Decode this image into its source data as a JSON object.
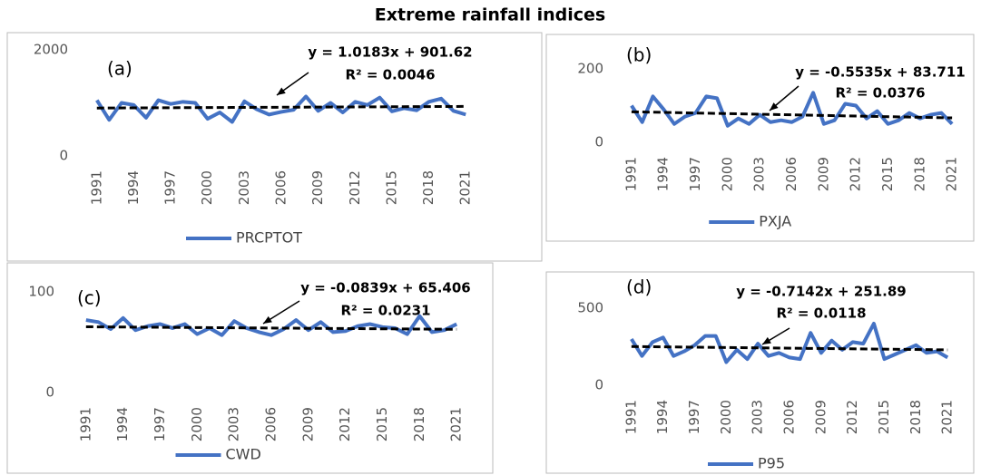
{
  "title": "Extreme rainfall indices",
  "chart_data": [
    {
      "type": "line",
      "panel": "(a)",
      "categories": [
        "1991",
        null,
        null,
        "1994",
        null,
        null,
        "1997",
        null,
        null,
        "2000",
        null,
        null,
        "2003",
        null,
        null,
        "2006",
        null,
        null,
        "2009",
        null,
        null,
        "2012",
        null,
        null,
        "2015",
        null,
        null,
        "2018",
        null,
        null,
        "2021"
      ],
      "series": [
        {
          "name": "PRCPTOT",
          "color": "#4472c4",
          "values": [
            1050,
            680,
            1000,
            960,
            720,
            1050,
            980,
            1020,
            1000,
            700,
            820,
            640,
            1030,
            880,
            780,
            830,
            870,
            1120,
            850,
            1000,
            820,
            1020,
            960,
            1100,
            840,
            900,
            860,
            1020,
            1080,
            850,
            780
          ]
        }
      ],
      "trend": {
        "slope": 1.0183,
        "intercept": 901.62,
        "label": "y = 1.0183x + 901.62"
      },
      "r2": "R² = 0.0046",
      "ylim": [
        0,
        2000
      ],
      "yticks": [
        0,
        2000
      ]
    },
    {
      "type": "line",
      "panel": "(b)",
      "categories": [
        "1991",
        null,
        null,
        "1994",
        null,
        null,
        "1997",
        null,
        null,
        "2000",
        null,
        null,
        "2003",
        null,
        null,
        "2006",
        null,
        null,
        "2009",
        null,
        null,
        "2012",
        null,
        null,
        "2015",
        null,
        null,
        "2018",
        null,
        null,
        "2021"
      ],
      "series": [
        {
          "name": "PXJA",
          "color": "#4472c4",
          "values": [
            100,
            55,
            125,
            90,
            50,
            70,
            80,
            125,
            120,
            45,
            65,
            50,
            75,
            55,
            60,
            55,
            70,
            135,
            50,
            60,
            105,
            100,
            65,
            85,
            50,
            60,
            80,
            65,
            75,
            80,
            50
          ]
        }
      ],
      "trend": {
        "slope": -0.5535,
        "intercept": 83.711,
        "label": "y = -0.5535x + 83.711"
      },
      "r2": "R² = 0.0376",
      "ylim": [
        0,
        200
      ],
      "yticks": [
        0,
        200
      ]
    },
    {
      "type": "line",
      "panel": "(c)",
      "categories": [
        "1991",
        null,
        null,
        "1994",
        null,
        null,
        "1997",
        null,
        null,
        "2000",
        null,
        null,
        "2003",
        null,
        null,
        "2006",
        null,
        null,
        "2009",
        null,
        null,
        "2012",
        null,
        null,
        "2015",
        null,
        null,
        "2018",
        null,
        null,
        "2021"
      ],
      "series": [
        {
          "name": "CWD",
          "color": "#4472c4",
          "values": [
            72,
            70,
            63,
            74,
            62,
            66,
            68,
            64,
            68,
            58,
            64,
            57,
            71,
            64,
            60,
            57,
            63,
            72,
            62,
            70,
            60,
            61,
            66,
            68,
            65,
            64,
            58,
            76,
            60,
            62,
            68
          ]
        }
      ],
      "trend": {
        "slope": -0.0839,
        "intercept": 65.406,
        "label": "y = -0.0839x + 65.406"
      },
      "r2": "R² = 0.0231",
      "ylim": [
        0,
        100
      ],
      "yticks": [
        0,
        100
      ]
    },
    {
      "type": "line",
      "panel": "(d)",
      "categories": [
        "1991",
        null,
        null,
        "1994",
        null,
        null,
        "1997",
        null,
        null,
        "2000",
        null,
        null,
        "2003",
        null,
        null,
        "2006",
        null,
        null,
        "2009",
        null,
        null,
        "2012",
        null,
        null,
        "2015",
        null,
        null,
        "2018",
        null,
        null,
        "2021"
      ],
      "series": [
        {
          "name": "P95",
          "color": "#4472c4",
          "values": [
            300,
            190,
            280,
            310,
            190,
            220,
            260,
            320,
            320,
            150,
            230,
            170,
            270,
            190,
            210,
            180,
            170,
            340,
            210,
            290,
            230,
            280,
            270,
            400,
            170,
            200,
            230,
            260,
            210,
            220,
            180
          ]
        }
      ],
      "trend": {
        "slope": -0.7142,
        "intercept": 251.89,
        "label": "y = -0.7142x + 251.89"
      },
      "r2": "R² = 0.0118",
      "ylim": [
        0,
        500
      ],
      "yticks": [
        0,
        500
      ]
    }
  ]
}
